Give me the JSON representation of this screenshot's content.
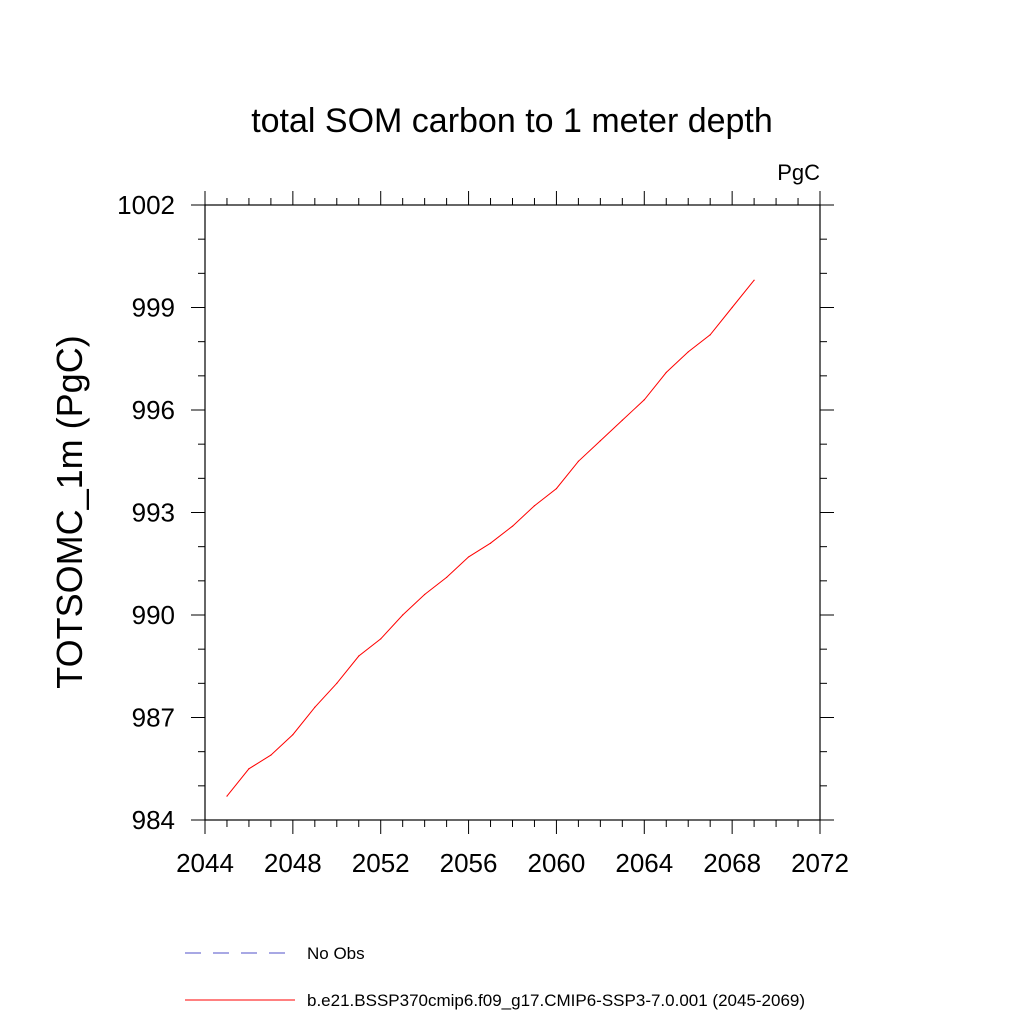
{
  "chart_data": {
    "type": "line",
    "title": "total SOM carbon to 1 meter depth",
    "units": "PgC",
    "ylabel": "TOTSOMC_1m  (PgC)",
    "xlabel": "",
    "xlim": [
      2044,
      2072
    ],
    "ylim": [
      984,
      1002
    ],
    "x_ticks": [
      "2044",
      "2048",
      "2052",
      "2056",
      "2060",
      "2064",
      "2068",
      "2072"
    ],
    "y_ticks": [
      "984",
      "987",
      "990",
      "993",
      "996",
      "999",
      "1002"
    ],
    "grid": false,
    "legend_placement": "bottom",
    "legend": [
      {
        "name": "No Obs",
        "color": "#5050c8",
        "style": "dashed"
      },
      {
        "name": "b.e21.BSSP370cmip6.f09_g17.CMIP6-SSP3-7.0.001 (2045-2069)",
        "color": "#ff0000",
        "style": "solid"
      }
    ],
    "series": [
      {
        "name": "b.e21.BSSP370cmip6.f09_g17.CMIP6-SSP3-7.0.001 (2045-2069)",
        "color": "#ff0000",
        "x": [
          2045,
          2046,
          2047,
          2048,
          2049,
          2050,
          2051,
          2052,
          2053,
          2054,
          2055,
          2056,
          2057,
          2058,
          2059,
          2060,
          2061,
          2062,
          2063,
          2064,
          2065,
          2066,
          2067,
          2068,
          2069
        ],
        "y": [
          984.7,
          985.5,
          985.9,
          986.5,
          987.3,
          988.0,
          988.8,
          989.3,
          990.0,
          990.6,
          991.1,
          991.7,
          992.1,
          992.6,
          993.2,
          993.7,
          994.5,
          995.1,
          995.7,
          996.3,
          997.1,
          997.7,
          998.2,
          999.0,
          999.8
        ]
      }
    ]
  }
}
